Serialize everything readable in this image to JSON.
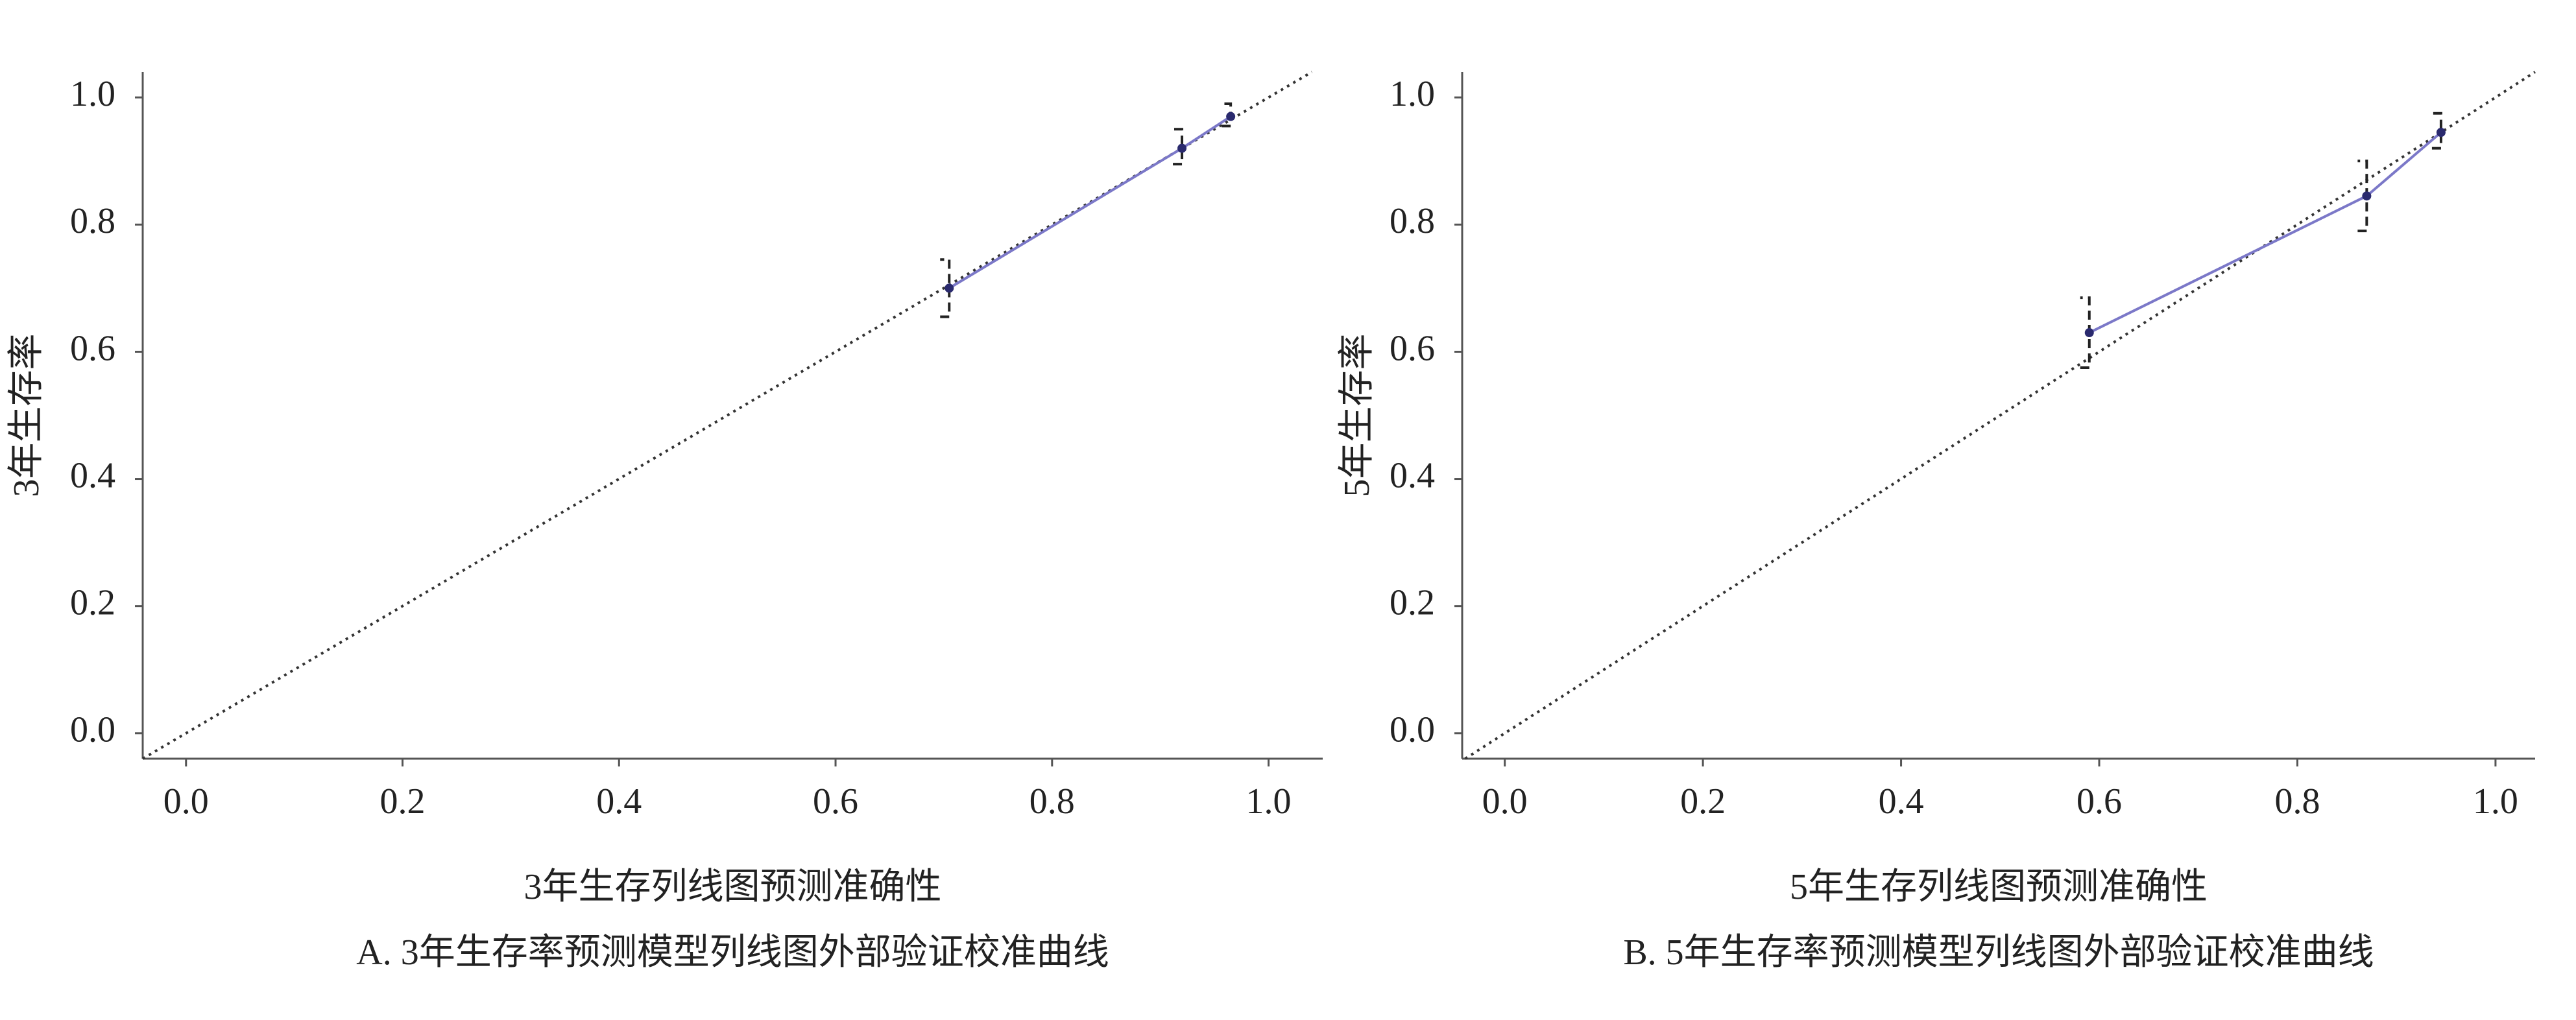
{
  "chart_data": [
    {
      "type": "line",
      "title": "A. 3年生存率预测模型列线图外部验证校准曲线",
      "x_label": "3年生存列线图预测准确性",
      "y_label": "3年生存率",
      "xlim": [
        -0.04,
        1.05
      ],
      "ylim": [
        -0.04,
        1.04
      ],
      "xticks": [
        {
          "value": 0,
          "label": "0.0"
        },
        0.2,
        0.4,
        0.6,
        0.8,
        {
          "value": 1,
          "label": "1.0"
        }
      ],
      "yticks": [
        {
          "value": 0,
          "label": "0.0"
        },
        0.2,
        0.4,
        0.6,
        0.8,
        {
          "value": 1,
          "label": "1.0"
        }
      ],
      "series": [
        {
          "color": "#7b78c8",
          "x": [
            0.705,
            0.92,
            0.965
          ],
          "values": [
            0.7,
            0.92,
            0.97
          ],
          "lower": [
            0.655,
            0.895,
            0.955
          ],
          "upper": [
            0.745,
            0.95,
            0.99
          ]
        }
      ]
    },
    {
      "type": "line",
      "title": "B. 5年生存率预测模型列线图外部验证校准曲线",
      "x_label": "5年生存列线图预测准确性",
      "y_label": "5年生存率",
      "xlim": [
        -0.043,
        1.04
      ],
      "ylim": [
        -0.04,
        1.04
      ],
      "xticks": [
        {
          "value": 0,
          "label": "0.0"
        },
        0.2,
        0.4,
        0.6,
        0.8,
        {
          "value": 1,
          "label": "1.0"
        }
      ],
      "yticks": [
        {
          "value": 0,
          "label": "0.0"
        },
        0.2,
        0.4,
        0.6,
        0.8,
        {
          "value": 1,
          "label": "1.0"
        }
      ],
      "series": [
        {
          "color": "#7b78c8",
          "x": [
            0.59,
            0.87,
            0.945
          ],
          "values": [
            0.63,
            0.845,
            0.945
          ],
          "lower": [
            0.575,
            0.79,
            0.92
          ],
          "upper": [
            0.685,
            0.9,
            0.975
          ]
        }
      ]
    }
  ]
}
